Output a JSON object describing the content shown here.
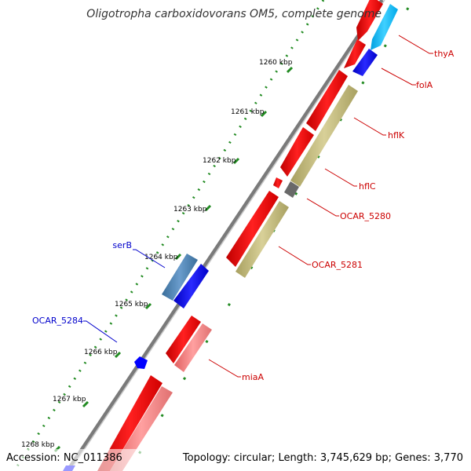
{
  "header": {
    "title": "Oligotropha carboxidovorans OM5, complete genome"
  },
  "footer": {
    "accession": "Accession: NC_011386",
    "summary": "Topology: circular; Length: 3,745,629 bp; Genes: 3,770"
  },
  "scale": {
    "ticks": [
      "1260 kbp",
      "1261 kbp",
      "1262 kbp",
      "1263 kbp",
      "1264 kbp",
      "1265 kbp",
      "1266 kbp",
      "1267 kbp",
      "1268 kbp"
    ]
  },
  "genes": {
    "right_labels": [
      "thyA",
      "folA",
      "hflK",
      "hflC",
      "OCAR_5280",
      "OCAR_5281",
      "miaA"
    ],
    "left_labels": [
      "serB",
      "OCAR_5284"
    ]
  },
  "colors": {
    "cds_red": "#ff0000",
    "cds_pink": "#f08080",
    "cds_olive": "#bdb76b",
    "cds_blue": "#0000ff",
    "cds_steel": "#4682b4",
    "cds_cyan": "#00bfff",
    "cds_grey": "#696969",
    "backbone": "#808080",
    "tick_green": "#228b22"
  }
}
